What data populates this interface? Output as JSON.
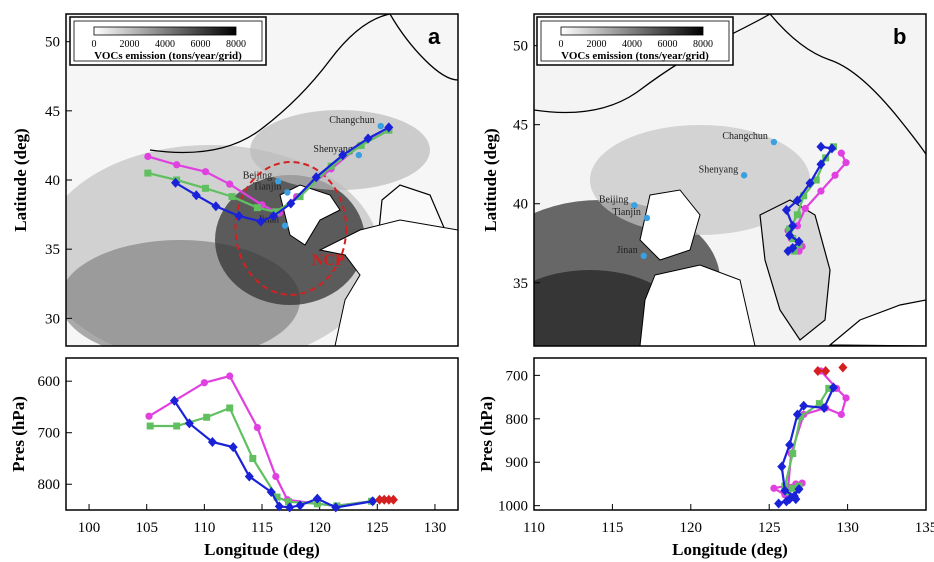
{
  "colors": {
    "magenta": "#e040e0",
    "green": "#60c060",
    "blue": "#1a22d8",
    "red": "#d42020",
    "city_dot": "#3aa0e0"
  },
  "chart_data": [
    {
      "panel": "a",
      "type": "scatter",
      "xlim": [
        98,
        132
      ],
      "ylim": [
        28,
        52
      ],
      "ylabel": "Latitude (deg)",
      "yticks": [
        30,
        35,
        40,
        45,
        50
      ],
      "colorbar": {
        "title": "VOCs emission (tons/year/grid)",
        "ticks": [
          "0",
          "2000",
          "4000",
          "6000",
          "8000"
        ]
      },
      "cities": [
        {
          "name": "Changchun",
          "lon": 125.3,
          "lat": 43.9
        },
        {
          "name": "Shenyang",
          "lon": 123.4,
          "lat": 41.8
        },
        {
          "name": "Beijing",
          "lon": 116.4,
          "lat": 39.9
        },
        {
          "name": "Tianjin",
          "lon": 117.2,
          "lat": 39.1
        },
        {
          "name": "Jinan",
          "lon": 117.0,
          "lat": 36.7
        }
      ],
      "annotation": {
        "text": "NCP",
        "lon": 117.5,
        "lat": 36.5,
        "radius_deg": 4.8
      },
      "series": [
        {
          "color": "magenta",
          "marker": "circle",
          "lon": [
            105.1,
            107.6,
            110.1,
            112.2,
            115.0,
            116.5,
            118.0,
            121.0,
            123.5,
            126.0
          ],
          "lat": [
            41.7,
            41.1,
            40.6,
            39.7,
            38.2,
            37.6,
            38.8,
            40.8,
            42.5,
            43.6
          ]
        },
        {
          "color": "green",
          "marker": "square",
          "lon": [
            105.1,
            107.6,
            110.1,
            112.4,
            114.6,
            116.2,
            118.3,
            121.0,
            123.6,
            126.0
          ],
          "lat": [
            40.5,
            40.0,
            39.4,
            38.8,
            38.0,
            37.7,
            38.8,
            41.0,
            42.5,
            43.6
          ]
        },
        {
          "color": "blue",
          "marker": "diamond",
          "lon": [
            107.5,
            109.3,
            111.0,
            113.0,
            114.9,
            116.0,
            117.5,
            119.7,
            122.0,
            124.2,
            126.0
          ],
          "lat": [
            39.8,
            38.9,
            38.1,
            37.4,
            37.0,
            37.4,
            38.3,
            40.2,
            41.8,
            43.0,
            43.8
          ]
        }
      ]
    },
    {
      "panel": "b",
      "type": "scatter",
      "xlim": [
        110,
        135
      ],
      "ylim": [
        31,
        52
      ],
      "ylabel": "Latitude (deg)",
      "yticks": [
        35,
        40,
        45,
        50
      ],
      "colorbar": {
        "title": "VOCs emission (tons/year/grid)",
        "ticks": [
          "0",
          "2000",
          "4000",
          "6000",
          "8000"
        ]
      },
      "cities": [
        {
          "name": "Changchun",
          "lon": 125.3,
          "lat": 43.9
        },
        {
          "name": "Shenyang",
          "lon": 123.4,
          "lat": 41.8
        },
        {
          "name": "Beijing",
          "lon": 116.4,
          "lat": 39.9
        },
        {
          "name": "Tianjin",
          "lon": 117.2,
          "lat": 39.1
        },
        {
          "name": "Jinan",
          "lon": 117.0,
          "lat": 36.7
        }
      ],
      "series": [
        {
          "color": "magenta",
          "marker": "circle",
          "lon": [
            129.6,
            129.9,
            129.2,
            128.3,
            127.3,
            126.8,
            126.2,
            126.4,
            127.1,
            126.9,
            126.5
          ],
          "lat": [
            43.2,
            42.6,
            41.8,
            40.8,
            39.7,
            38.6,
            38.3,
            37.8,
            37.3,
            37.0,
            37.2
          ]
        },
        {
          "color": "green",
          "marker": "square",
          "lon": [
            129.1,
            128.6,
            128.0,
            127.2,
            126.8,
            126.3,
            126.5,
            126.9,
            126.6
          ],
          "lat": [
            43.6,
            42.9,
            41.5,
            40.5,
            39.3,
            38.4,
            37.8,
            37.4,
            37.0
          ]
        },
        {
          "color": "blue",
          "marker": "diamond",
          "lon": [
            128.3,
            129.0,
            128.3,
            127.6,
            126.8,
            126.1,
            126.5,
            126.3,
            126.9,
            126.5,
            126.2
          ],
          "lat": [
            43.6,
            43.5,
            42.5,
            41.3,
            40.2,
            39.6,
            38.6,
            38.0,
            37.6,
            37.2,
            37.0
          ]
        }
      ]
    },
    {
      "panel": "a-profile",
      "type": "line",
      "xlabel": "Longitude (deg)",
      "ylabel": "Pres (hPa)",
      "xlim": [
        98,
        132
      ],
      "ylim": [
        850,
        555
      ],
      "xticks": [
        100,
        105,
        110,
        115,
        120,
        125,
        130
      ],
      "yticks": [
        600,
        700,
        800
      ],
      "series": [
        {
          "color": "magenta",
          "marker": "circle",
          "lon": [
            105.2,
            110.0,
            112.2,
            114.6,
            116.2,
            117.2,
            119.8,
            121.4,
            124.5
          ],
          "pres": [
            668,
            603,
            590,
            690,
            785,
            830,
            838,
            842,
            833
          ]
        },
        {
          "color": "green",
          "marker": "square",
          "lon": [
            105.3,
            107.6,
            110.2,
            112.2,
            114.2,
            116.3,
            117.3,
            119.8,
            121.5,
            124.5
          ],
          "pres": [
            687,
            687,
            670,
            652,
            750,
            825,
            834,
            838,
            842,
            833
          ]
        },
        {
          "color": "blue",
          "marker": "diamond",
          "lon": [
            107.4,
            108.7,
            110.7,
            112.5,
            113.9,
            115.8,
            116.5,
            117.4,
            118.3,
            119.8,
            121.4,
            124.6
          ],
          "pres": [
            638,
            682,
            718,
            728,
            785,
            815,
            843,
            845,
            841,
            828,
            845,
            833
          ]
        },
        {
          "color": "red",
          "marker": "diamond",
          "lon": [
            125.2,
            125.6,
            126.0,
            126.4
          ],
          "pres": [
            830,
            830,
            830,
            830
          ]
        }
      ]
    },
    {
      "panel": "b-profile",
      "type": "line",
      "xlabel": "Longitude (deg)",
      "ylabel": "Pres (hPa)",
      "xlim": [
        110,
        135
      ],
      "ylim": [
        1010,
        660
      ],
      "xticks": [
        110,
        115,
        120,
        125,
        130,
        135
      ],
      "yticks": [
        700,
        800,
        900,
        1000
      ],
      "series": [
        {
          "color": "magenta",
          "marker": "circle",
          "lon": [
            128.3,
            129.3,
            129.9,
            129.6,
            128.6,
            127.2,
            126.4,
            126.2,
            126.0,
            125.3,
            126.7,
            127.1
          ],
          "pres": [
            690,
            730,
            752,
            790,
            775,
            790,
            880,
            960,
            975,
            960,
            950,
            948
          ]
        },
        {
          "color": "green",
          "marker": "square",
          "lon": [
            128.8,
            128.2,
            127.0,
            126.5,
            126.0,
            126.2,
            126.5,
            126.9
          ],
          "pres": [
            730,
            765,
            795,
            880,
            955,
            968,
            960,
            955
          ]
        },
        {
          "color": "blue",
          "marker": "diamond",
          "lon": [
            129.1,
            128.5,
            127.2,
            126.8,
            126.3,
            125.8,
            126.0,
            126.6,
            126.9,
            126.3,
            125.6,
            126.1,
            126.7
          ],
          "pres": [
            728,
            775,
            770,
            790,
            860,
            910,
            965,
            978,
            962,
            985,
            995,
            990,
            985
          ]
        },
        {
          "color": "red",
          "marker": "diamond",
          "lon": [
            128.1,
            128.6,
            129.7
          ],
          "pres": [
            690,
            690,
            682
          ]
        }
      ]
    }
  ]
}
